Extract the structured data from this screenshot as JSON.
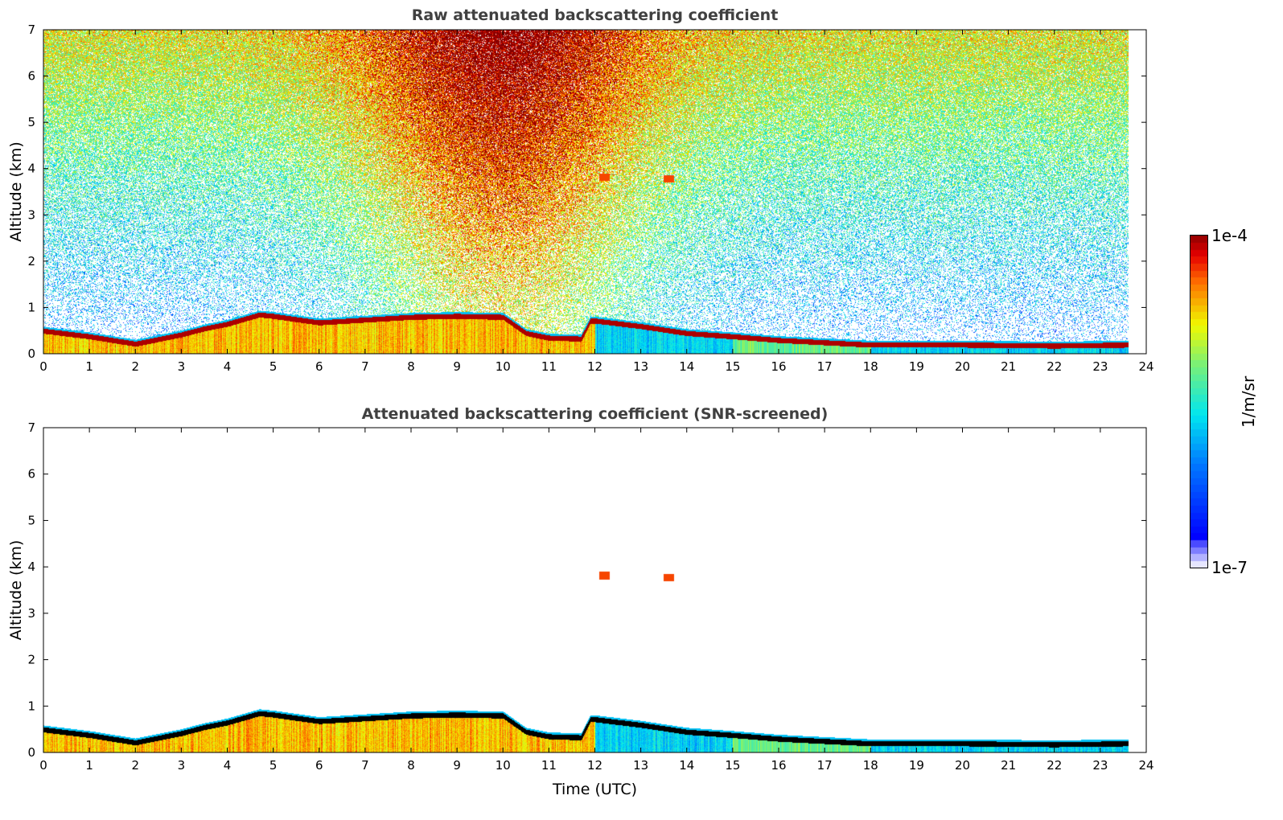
{
  "chart_data": [
    {
      "type": "heatmap",
      "title": "Raw attenuated backscattering coefficient",
      "xlabel": "",
      "ylabel": "Altitude (km)",
      "xlim": [
        0,
        24
      ],
      "ylim": [
        0,
        7
      ],
      "xticks": [
        "0",
        "1",
        "2",
        "3",
        "4",
        "5",
        "6",
        "7",
        "8",
        "9",
        "10",
        "11",
        "12",
        "13",
        "14",
        "15",
        "16",
        "17",
        "18",
        "19",
        "20",
        "21",
        "22",
        "23",
        "24"
      ],
      "yticks": [
        "0",
        "1",
        "2",
        "3",
        "4",
        "5",
        "6",
        "7"
      ],
      "screened": false
    },
    {
      "type": "heatmap",
      "title": "Attenuated backscattering coefficient (SNR-screened)",
      "xlabel": "Time (UTC)",
      "ylabel": "Altitude (km)",
      "xlim": [
        0,
        24
      ],
      "ylim": [
        0,
        7
      ],
      "xticks": [
        "0",
        "1",
        "2",
        "3",
        "4",
        "5",
        "6",
        "7",
        "8",
        "9",
        "10",
        "11",
        "12",
        "13",
        "14",
        "15",
        "16",
        "17",
        "18",
        "19",
        "20",
        "21",
        "22",
        "23",
        "24"
      ],
      "yticks": [
        "0",
        "1",
        "2",
        "3",
        "4",
        "5",
        "6",
        "7"
      ],
      "screened": true
    }
  ],
  "layer_height_km": {
    "time": [
      0,
      1,
      1.5,
      2,
      2.5,
      3,
      3.5,
      4,
      4.7,
      5,
      6,
      7,
      8,
      9,
      10,
      10.5,
      11,
      11.7,
      11.9,
      12,
      13,
      14,
      15,
      16,
      17,
      18,
      20,
      22,
      23.6
    ],
    "height": [
      0.5,
      0.38,
      0.3,
      0.22,
      0.32,
      0.42,
      0.55,
      0.65,
      0.85,
      0.82,
      0.68,
      0.74,
      0.8,
      0.82,
      0.8,
      0.45,
      0.35,
      0.33,
      0.72,
      0.72,
      0.6,
      0.45,
      0.38,
      0.3,
      0.25,
      0.2,
      0.2,
      0.18,
      0.2
    ]
  },
  "elevated_features_km": [
    {
      "time": 12.2,
      "height": 3.82
    },
    {
      "time": 13.6,
      "height": 3.78
    }
  ],
  "data_end_hour": 23.6,
  "colorbar": {
    "max_label": "1e-4",
    "min_label": "1e-7",
    "unit": "1/m/sr",
    "log_range": [
      -7,
      -4
    ]
  }
}
